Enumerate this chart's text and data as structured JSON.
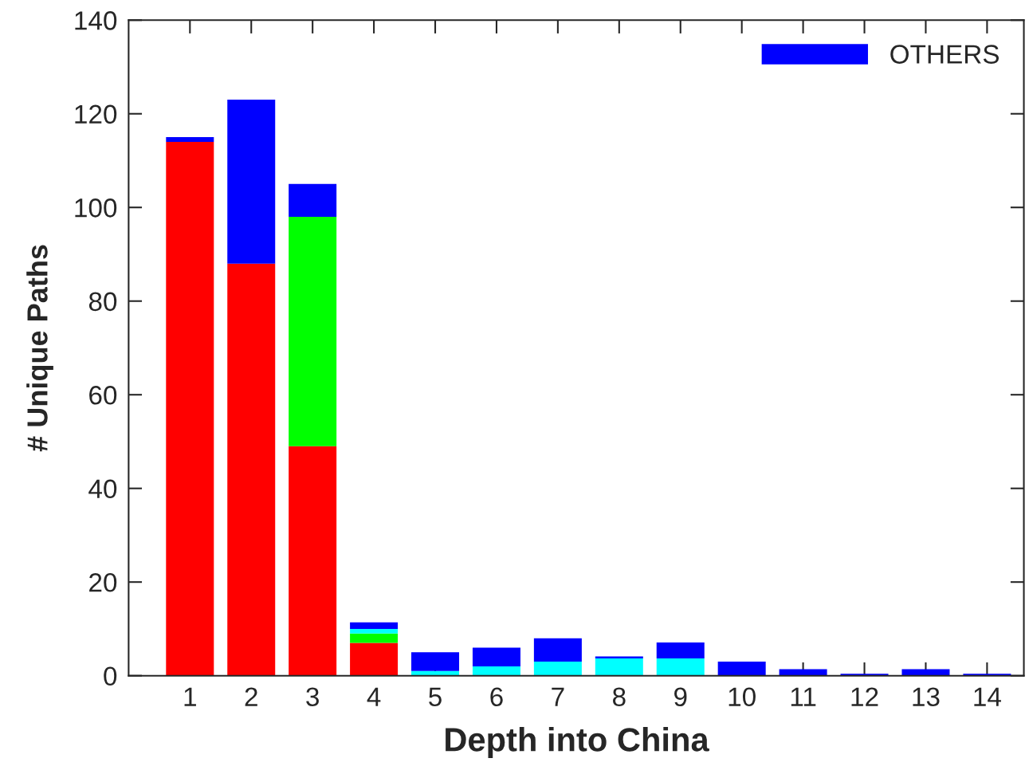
{
  "chart_data": {
    "type": "bar",
    "stacked": true,
    "xlabel": "Depth into China",
    "ylabel": "# Unique Paths",
    "categories": [
      "1",
      "2",
      "3",
      "4",
      "5",
      "6",
      "7",
      "8",
      "9",
      "10",
      "11",
      "12",
      "13",
      "14"
    ],
    "series": [
      {
        "color": "#ff0000",
        "values": [
          114,
          88,
          49,
          7,
          null,
          null,
          null,
          null,
          null,
          null,
          null,
          null,
          null,
          null
        ]
      },
      {
        "color": "#00ff00",
        "values": [
          null,
          null,
          49,
          2,
          null,
          null,
          null,
          null,
          null,
          null,
          null,
          null,
          null,
          null
        ]
      },
      {
        "color": "#00ffff",
        "values": [
          null,
          null,
          null,
          1,
          1,
          2,
          3,
          3.7,
          3.7,
          null,
          null,
          null,
          null,
          null
        ]
      },
      {
        "name": "OTHERS",
        "color": "#0000ff",
        "values": [
          1,
          35,
          7,
          1.4,
          4,
          4,
          5,
          0.4,
          3.4,
          3,
          1.4,
          0.4,
          1.4,
          0.4
        ]
      }
    ],
    "ylim": [
      0,
      140
    ],
    "yticks": [
      0,
      20,
      40,
      60,
      80,
      100,
      120,
      140
    ],
    "grid": false,
    "legend": "top right"
  }
}
